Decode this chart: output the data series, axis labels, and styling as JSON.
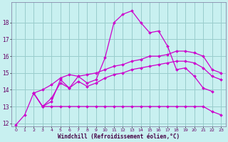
{
  "title": "",
  "xlabel": "Windchill (Refroidissement éolien,°C)",
  "ylabel": "",
  "background_color": "#c8f0f0",
  "grid_color": "#99cccc",
  "line_color": "#cc00cc",
  "xlim": [
    -0.5,
    23.5
  ],
  "ylim": [
    11.8,
    19.2
  ],
  "yticks": [
    12,
    13,
    14,
    15,
    16,
    17,
    18
  ],
  "xticks": [
    0,
    1,
    2,
    3,
    4,
    5,
    6,
    7,
    8,
    9,
    10,
    11,
    12,
    13,
    14,
    15,
    16,
    17,
    18,
    19,
    20,
    21,
    22,
    23
  ],
  "lines": [
    {
      "x": [
        0,
        1,
        2,
        3,
        4,
        5,
        6,
        7,
        8,
        9,
        10,
        11,
        12,
        13,
        14,
        15,
        16,
        17,
        18,
        19,
        20,
        21,
        22
      ],
      "y": [
        11.9,
        12.5,
        13.8,
        13.0,
        13.3,
        14.6,
        14.1,
        14.8,
        14.4,
        14.6,
        15.9,
        18.0,
        18.5,
        18.7,
        18.0,
        17.4,
        17.5,
        16.6,
        15.2,
        15.3,
        14.8,
        14.1,
        13.9
      ]
    },
    {
      "x": [
        1,
        2,
        3,
        4,
        5,
        6,
        7,
        8,
        9,
        10,
        11,
        12,
        13,
        14,
        15,
        16,
        17,
        18,
        19,
        20,
        21,
        22,
        23
      ],
      "y": [
        null,
        13.8,
        14.0,
        14.3,
        14.7,
        14.9,
        14.8,
        14.9,
        15.0,
        15.2,
        15.4,
        15.5,
        15.7,
        15.8,
        16.0,
        16.0,
        16.1,
        16.3,
        16.3,
        16.2,
        16.0,
        15.2,
        15.0
      ]
    },
    {
      "x": [
        2,
        3,
        4,
        5,
        6,
        7,
        8,
        9,
        10,
        11,
        12,
        13,
        14,
        15,
        16,
        17,
        18,
        19,
        20,
        21,
        22,
        23
      ],
      "y": [
        13.8,
        13.0,
        13.5,
        14.4,
        14.1,
        14.5,
        14.2,
        14.4,
        14.7,
        14.9,
        15.0,
        15.2,
        15.3,
        15.4,
        15.5,
        15.6,
        15.7,
        15.7,
        15.6,
        15.3,
        14.8,
        14.6
      ]
    },
    {
      "x": [
        2,
        3,
        4,
        5,
        6,
        7,
        8,
        9,
        10,
        11,
        12,
        13,
        14,
        15,
        16,
        17,
        18,
        19,
        20,
        21,
        22,
        23
      ],
      "y": [
        13.8,
        13.0,
        13.0,
        13.0,
        13.0,
        13.0,
        13.0,
        13.0,
        13.0,
        13.0,
        13.0,
        13.0,
        13.0,
        13.0,
        13.0,
        13.0,
        13.0,
        13.0,
        13.0,
        13.0,
        12.7,
        12.5
      ]
    }
  ],
  "marker": "D",
  "markersize": 2.0,
  "linewidth": 0.9
}
